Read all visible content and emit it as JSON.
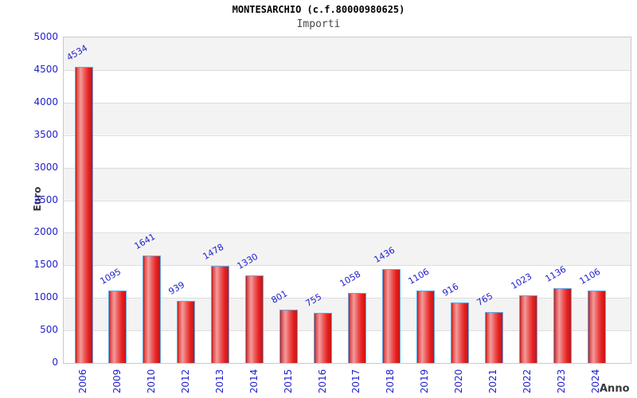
{
  "header": {
    "title": "MONTESARCHIO (c.f.80000980625)",
    "subtitle": "Importi"
  },
  "chart_data": {
    "type": "bar",
    "title": "MONTESARCHIO (c.f.80000980625)",
    "subtitle": "Importi",
    "xlabel": "Anno",
    "ylabel": "Euro",
    "categories": [
      "2006",
      "2009",
      "2010",
      "2012",
      "2013",
      "2014",
      "2015",
      "2016",
      "2017",
      "2018",
      "2019",
      "2020",
      "2021",
      "2022",
      "2023",
      "2024"
    ],
    "values": [
      4534,
      1095,
      1641,
      939,
      1478,
      1330,
      801,
      755,
      1058,
      1436,
      1106,
      916,
      765,
      1023,
      1136,
      1106
    ],
    "ylim": [
      0,
      5000
    ],
    "ytick_step": 500,
    "yticks": [
      0,
      500,
      1000,
      1500,
      2000,
      2500,
      3000,
      3500,
      4000,
      4500,
      5000
    ],
    "grid": true,
    "legend_position": "none",
    "band_fill": "alternating horizontal 500-unit bands",
    "colors": {
      "bar_edge": "#b91e1e",
      "bar_highlight": "#f29c9c",
      "bar_main": "#e51f1f",
      "bar_border": "#61a7e3",
      "tick_label": "#2121cd",
      "value_label": "#2121cd",
      "band_gray": "#f3f3f3",
      "grid_line": "#dddddd",
      "plot_border": "#c9c9c9",
      "axis_title": "#3a3a3a",
      "title": "#000000",
      "subtitle": "#4a4a4a"
    }
  }
}
